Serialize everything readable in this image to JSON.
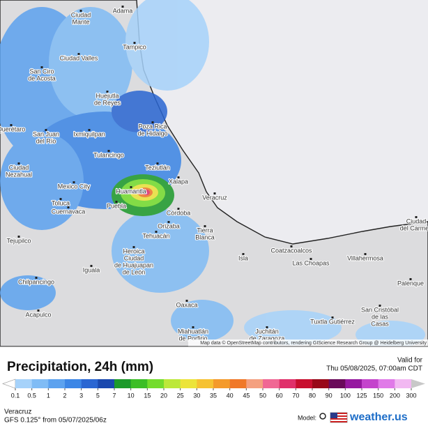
{
  "map": {
    "cities": [
      [
        "Ciudad",
        "Mante"
      ],
      [
        "Adama"
      ],
      [
        "Tampico"
      ],
      [
        "Ciudad Valles"
      ],
      [
        "San Ciro",
        "de Acosta"
      ],
      [
        "Huejutla",
        "de Reyes"
      ],
      [
        "Poza Rica",
        "de Hidalgo"
      ],
      [
        "Querétaro"
      ],
      [
        "San Juan",
        "del Río"
      ],
      [
        "Ixmiquilpan"
      ],
      [
        "Tulancingo"
      ],
      [
        "Teziutlán"
      ],
      [
        "Ciudad",
        "Nezahual"
      ],
      [
        "Mexico City"
      ],
      [
        "Xalapa"
      ],
      [
        "Huamantla"
      ],
      [
        "Veracruz"
      ],
      [
        "Toluca"
      ],
      [
        "Cuernavaca"
      ],
      [
        "Puebla"
      ],
      [
        "Córdoba"
      ],
      [
        "Orizaba"
      ],
      [
        "Tierra",
        "Blanca"
      ],
      [
        "Tehuacán"
      ],
      [
        "Tejupilco"
      ],
      [
        "Heroica",
        "Ciudad",
        "de Huajuapan",
        "de León"
      ],
      [
        "Iguala"
      ],
      [
        "Isla"
      ],
      [
        "Coatzacoalcos"
      ],
      [
        "Las Choapas"
      ],
      [
        "Villahermosa"
      ],
      [
        "Chilpancingo"
      ],
      [
        "Oaxaca"
      ],
      [
        "Acapulco"
      ],
      [
        "Palenque"
      ],
      [
        "Miahuatlán",
        "de Porfirio"
      ],
      [
        "Juchitán",
        "de Zaragoza"
      ],
      [
        "Tuxtla Gutiérrez"
      ],
      [
        "San Cristóbal",
        "de las",
        "Casas"
      ],
      [
        "Ciudad",
        "del Carmen"
      ]
    ],
    "attribution": "Map data © OpenStreetMap contributors, rendering GIScience Research Group @ Heidelberg University"
  },
  "legend": {
    "title": "Precipitation, 24h (mm)",
    "valid_label": "Valid for",
    "valid_time": "Thu 05/08/2025, 07:00am CDT",
    "ticks": [
      "0.1",
      "0.5",
      "1",
      "2",
      "3",
      "5",
      "7",
      "10",
      "15",
      "20",
      "25",
      "30",
      "35",
      "40",
      "45",
      "50",
      "60",
      "70",
      "80",
      "90",
      "100",
      "125",
      "150",
      "200",
      "300"
    ],
    "low_color": "#ffffff",
    "colors": [
      "#a6d2fa",
      "#80bcf5",
      "#5ca2ef",
      "#3c86e6",
      "#2a66d2",
      "#1a48ae",
      "#1c9a2a",
      "#3cbe26",
      "#74dc2c",
      "#bce83a",
      "#ece43a",
      "#f6c232",
      "#f49a2a",
      "#f07828",
      "#f4a080",
      "#f06894",
      "#e0306a",
      "#c80e2e",
      "#980818",
      "#6a0a5a",
      "#9618a0",
      "#c444cc",
      "#e07ae8",
      "#f2b8f2"
    ],
    "high_color": "#c8c8c8"
  },
  "footer": {
    "location": "Veracruz",
    "model_run": "GFS 0.125° from 05/07/2025/06z",
    "model_label": "Model:",
    "brand": "weather.us"
  }
}
